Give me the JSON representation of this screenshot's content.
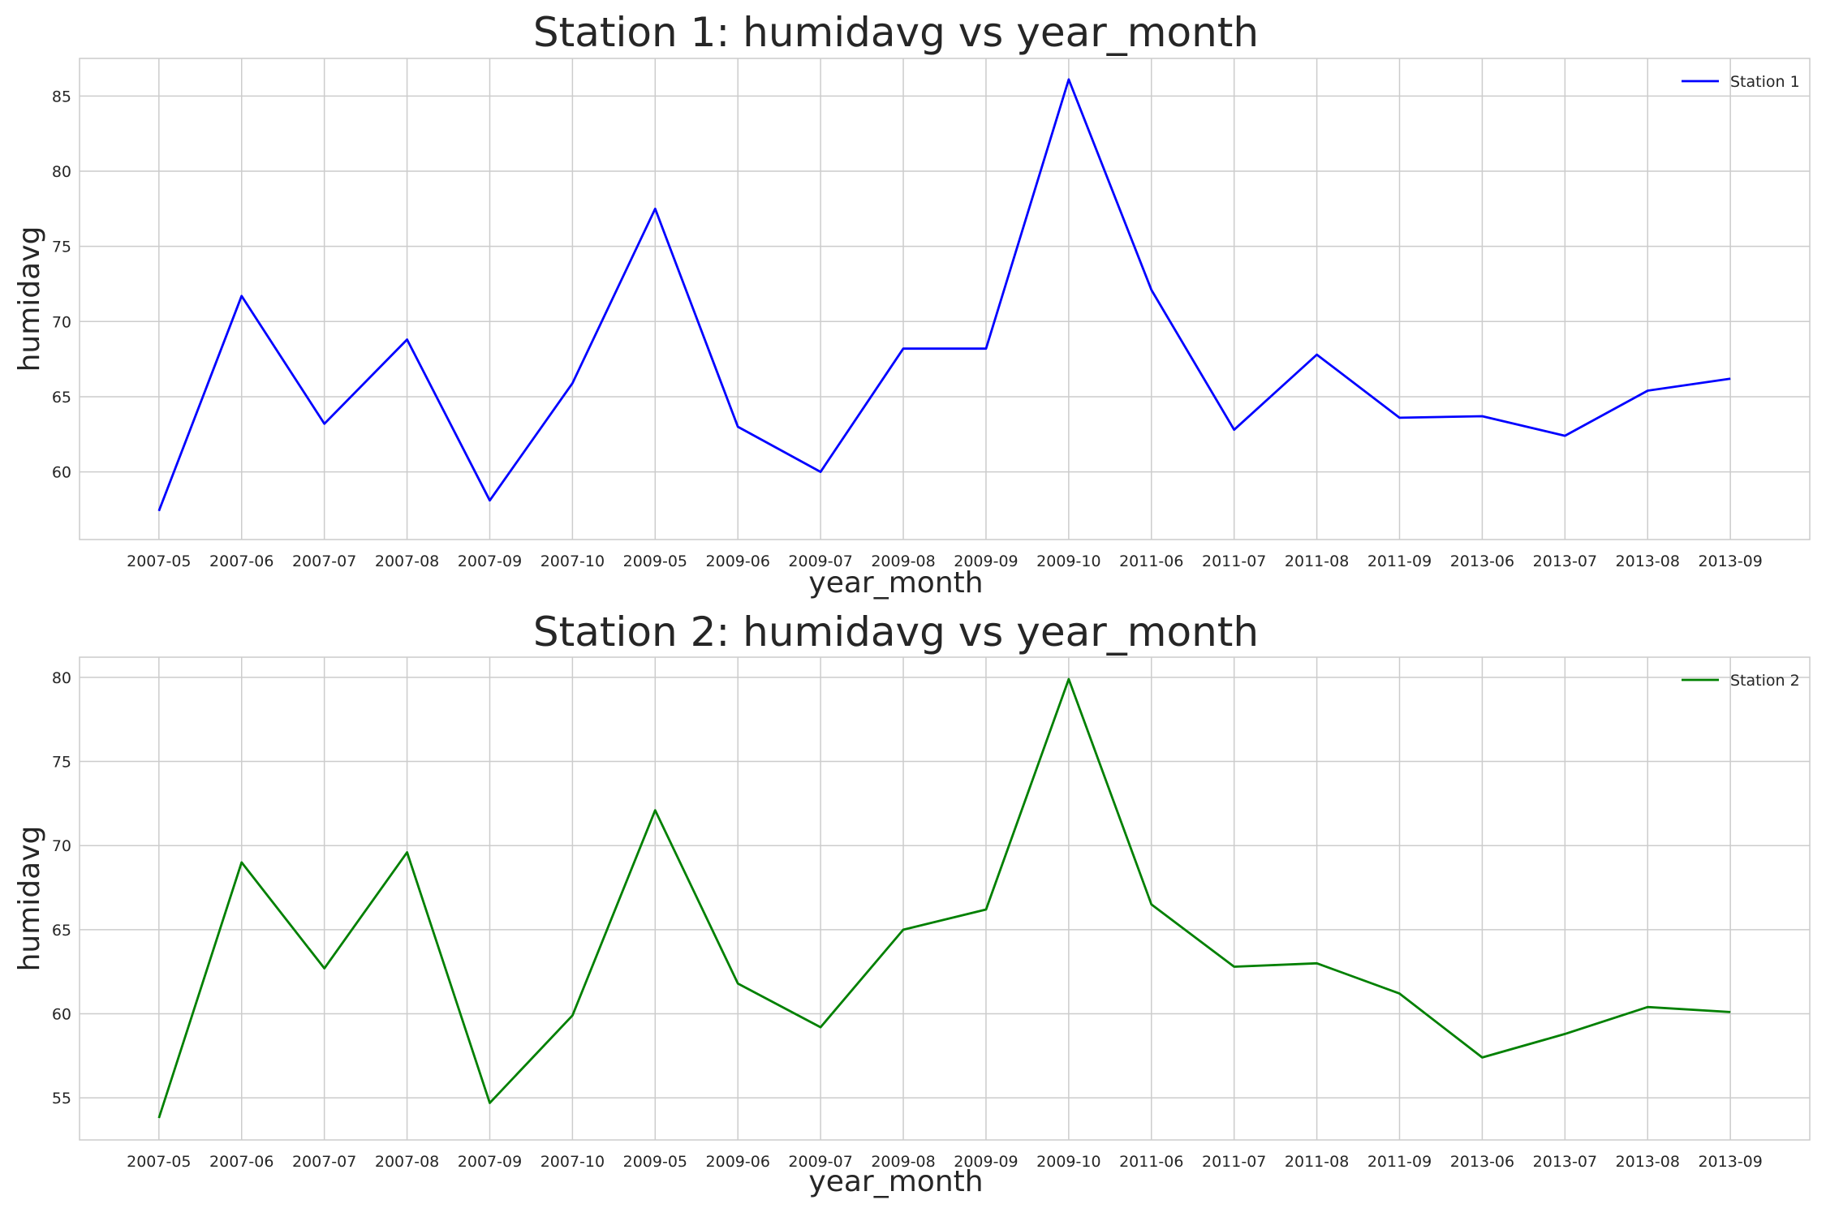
{
  "chart_data": [
    {
      "type": "line",
      "title": "Station 1:  humidavg vs  year_month",
      "xlabel": "year_month",
      "ylabel": "humidavg",
      "categories": [
        "2007-05",
        "2007-06",
        "2007-07",
        "2007-08",
        "2007-09",
        "2007-10",
        "2009-05",
        "2009-06",
        "2009-07",
        "2009-08",
        "2009-09",
        "2009-10",
        "2011-06",
        "2011-07",
        "2011-08",
        "2011-09",
        "2013-06",
        "2013-07",
        "2013-08",
        "2013-09"
      ],
      "yticks": [
        60,
        65,
        70,
        75,
        80,
        85
      ],
      "ylim": [
        55.5,
        87.5
      ],
      "grid": true,
      "legend_position": "top-right",
      "series": [
        {
          "name": "Station 1",
          "color": "#0000ff",
          "values": [
            57.4,
            71.7,
            63.2,
            68.8,
            58.1,
            65.9,
            77.5,
            63.0,
            60.0,
            68.2,
            68.2,
            86.1,
            72.1,
            62.8,
            67.8,
            63.6,
            63.7,
            62.4,
            65.4,
            66.2
          ]
        }
      ]
    },
    {
      "type": "line",
      "title": "Station 2:  humidavg vs  year_month",
      "xlabel": "year_month",
      "ylabel": "humidavg",
      "categories": [
        "2007-05",
        "2007-06",
        "2007-07",
        "2007-08",
        "2007-09",
        "2007-10",
        "2009-05",
        "2009-06",
        "2009-07",
        "2009-08",
        "2009-09",
        "2009-10",
        "2011-06",
        "2011-07",
        "2011-08",
        "2011-09",
        "2013-06",
        "2013-07",
        "2013-08",
        "2013-09"
      ],
      "yticks": [
        55,
        60,
        65,
        70,
        75,
        80
      ],
      "ylim": [
        52.5,
        81.2
      ],
      "grid": true,
      "legend_position": "top-right",
      "series": [
        {
          "name": "Station 2",
          "color": "#008000",
          "values": [
            53.8,
            69.0,
            62.7,
            69.6,
            54.7,
            59.9,
            72.1,
            61.8,
            59.2,
            65.0,
            66.2,
            79.9,
            66.5,
            62.8,
            63.0,
            61.2,
            57.4,
            58.8,
            60.4,
            60.1
          ]
        }
      ]
    }
  ]
}
